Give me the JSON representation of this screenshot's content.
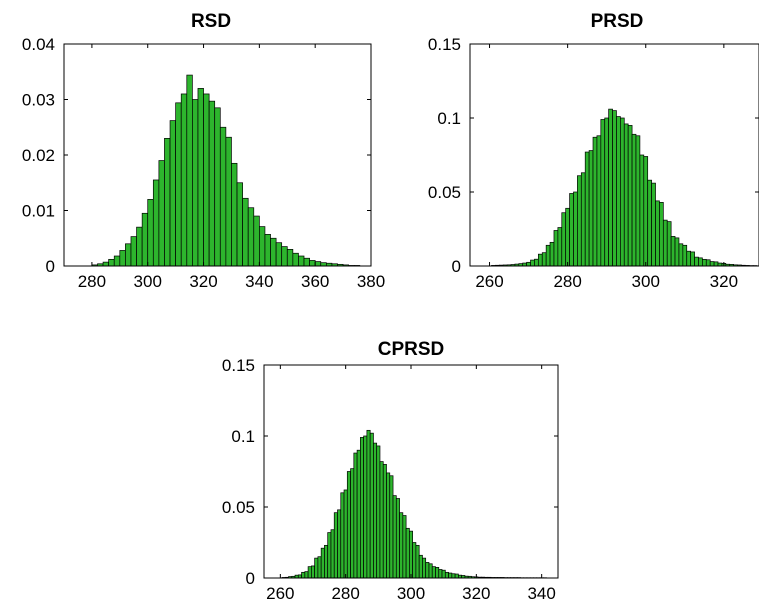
{
  "chart_data": [
    {
      "type": "bar",
      "title": "RSD",
      "xlabel": "",
      "ylabel": "",
      "xlim": [
        270,
        380
      ],
      "ylim": [
        0,
        0.04
      ],
      "xticks": [
        280,
        300,
        320,
        340,
        360,
        380
      ],
      "yticks": [
        0,
        0.01,
        0.02,
        0.03,
        0.04
      ],
      "grid": false,
      "bar_width": 2,
      "color": "#2db52d",
      "x": [
        281,
        283,
        285,
        287,
        289,
        291,
        293,
        295,
        297,
        299,
        301,
        303,
        305,
        307,
        309,
        311,
        313,
        315,
        317,
        319,
        321,
        323,
        325,
        327,
        329,
        331,
        333,
        335,
        337,
        339,
        341,
        343,
        345,
        347,
        349,
        351,
        353,
        355,
        357,
        359,
        361,
        363,
        365,
        367,
        369,
        371,
        373,
        375
      ],
      "values": [
        0.0002,
        0.0004,
        0.0007,
        0.0012,
        0.0018,
        0.0028,
        0.004,
        0.0053,
        0.007,
        0.0095,
        0.012,
        0.0155,
        0.019,
        0.023,
        0.0262,
        0.0294,
        0.031,
        0.0344,
        0.03,
        0.032,
        0.031,
        0.0297,
        0.0285,
        0.025,
        0.0232,
        0.0185,
        0.015,
        0.0122,
        0.0105,
        0.009,
        0.0071,
        0.0057,
        0.005,
        0.0042,
        0.0035,
        0.003,
        0.0023,
        0.0018,
        0.0014,
        0.001,
        0.0008,
        0.0006,
        0.0005,
        0.0004,
        0.0003,
        0.0002,
        0.0001,
        0.0001
      ]
    },
    {
      "type": "bar",
      "title": "PRSD",
      "xlabel": "",
      "ylabel": "",
      "xlim": [
        255,
        329
      ],
      "ylim": [
        0,
        0.15
      ],
      "xticks": [
        260,
        280,
        300,
        320
      ],
      "yticks": [
        0,
        0.05,
        0.1,
        0.15
      ],
      "grid": false,
      "bar_width": 1,
      "color": "#2db52d",
      "x": [
        261,
        262,
        263,
        264,
        265,
        266,
        267,
        268,
        269,
        270,
        271,
        272,
        273,
        274,
        275,
        276,
        277,
        278,
        279,
        280,
        281,
        282,
        283,
        284,
        285,
        286,
        287,
        288,
        289,
        290,
        291,
        292,
        293,
        294,
        295,
        296,
        297,
        298,
        299,
        300,
        301,
        302,
        303,
        304,
        305,
        306,
        307,
        308,
        309,
        310,
        311,
        312,
        313,
        314,
        315,
        316,
        317,
        318,
        319,
        320,
        321,
        322,
        323,
        324,
        325,
        326,
        327,
        328
      ],
      "values": [
        0.0004,
        0.0005,
        0.0006,
        0.0007,
        0.0008,
        0.001,
        0.0013,
        0.0016,
        0.002,
        0.0025,
        0.004,
        0.0046,
        0.008,
        0.009,
        0.014,
        0.016,
        0.024,
        0.026,
        0.036,
        0.039,
        0.049,
        0.05,
        0.061,
        0.063,
        0.077,
        0.078,
        0.087,
        0.088,
        0.099,
        0.1,
        0.106,
        0.105,
        0.101,
        0.1,
        0.096,
        0.095,
        0.089,
        0.088,
        0.075,
        0.074,
        0.058,
        0.056,
        0.044,
        0.043,
        0.031,
        0.03,
        0.02,
        0.019,
        0.015,
        0.014,
        0.01,
        0.0095,
        0.006,
        0.0055,
        0.0045,
        0.0042,
        0.003,
        0.0028,
        0.002,
        0.0018,
        0.0012,
        0.0011,
        0.0008,
        0.0007,
        0.0005,
        0.0004,
        0.0003,
        0.0003
      ]
    },
    {
      "type": "bar",
      "title": "CPRSD",
      "xlabel": "",
      "ylabel": "",
      "xlim": [
        255,
        345
      ],
      "ylim": [
        0,
        0.15
      ],
      "xticks": [
        260,
        280,
        300,
        320,
        340
      ],
      "yticks": [
        0,
        0.05,
        0.1,
        0.15
      ],
      "grid": false,
      "bar_width": 1,
      "color": "#2db52d",
      "x": [
        261,
        262,
        263,
        264,
        265,
        266,
        267,
        268,
        269,
        270,
        271,
        272,
        273,
        274,
        275,
        276,
        277,
        278,
        279,
        280,
        281,
        282,
        283,
        284,
        285,
        286,
        287,
        288,
        289,
        290,
        291,
        292,
        293,
        294,
        295,
        296,
        297,
        298,
        299,
        300,
        301,
        302,
        303,
        304,
        305,
        306,
        307,
        308,
        309,
        310,
        311,
        312,
        313,
        314,
        315,
        316,
        317,
        318,
        319,
        320,
        321,
        322,
        323,
        324,
        325,
        326,
        327,
        328,
        329,
        330,
        331,
        332,
        333,
        334,
        335,
        336,
        337,
        338,
        339,
        340,
        341
      ],
      "values": [
        0.0004,
        0.0005,
        0.001,
        0.0012,
        0.002,
        0.0022,
        0.004,
        0.0045,
        0.008,
        0.0085,
        0.014,
        0.015,
        0.021,
        0.023,
        0.032,
        0.034,
        0.046,
        0.048,
        0.06,
        0.062,
        0.075,
        0.077,
        0.088,
        0.09,
        0.099,
        0.1,
        0.104,
        0.102,
        0.095,
        0.093,
        0.082,
        0.08,
        0.074,
        0.072,
        0.058,
        0.056,
        0.046,
        0.044,
        0.035,
        0.033,
        0.025,
        0.023,
        0.016,
        0.014,
        0.011,
        0.01,
        0.008,
        0.0075,
        0.006,
        0.0055,
        0.004,
        0.0035,
        0.003,
        0.0028,
        0.002,
        0.0018,
        0.0013,
        0.0012,
        0.0009,
        0.0008,
        0.0006,
        0.0006,
        0.0005,
        0.0005,
        0.0004,
        0.0004,
        0.0004,
        0.0004,
        0.0003,
        0.0003,
        0.0003,
        0.0003,
        0.0003,
        0.0002,
        0.0002,
        0.0002,
        0.0002,
        0.0002,
        0.0002,
        0.0002,
        0.0002
      ]
    }
  ]
}
